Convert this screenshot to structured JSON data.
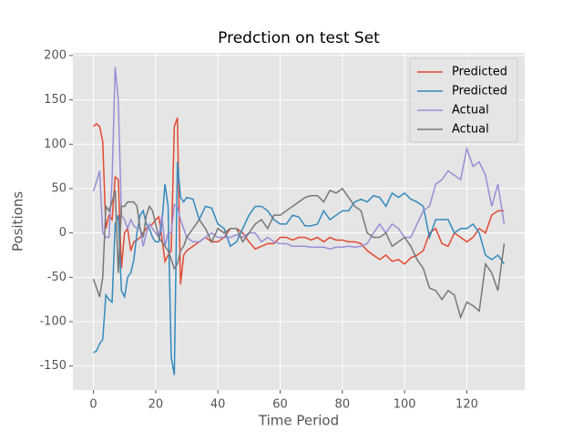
{
  "chart_data": {
    "type": "line",
    "title": "Predction on test Set",
    "x_label": "Time Period",
    "y_label": "Positions",
    "x": [
      0,
      1,
      2,
      3,
      4,
      5,
      6,
      7,
      8,
      9,
      10,
      11,
      12,
      13,
      14,
      15,
      16,
      17,
      18,
      19,
      20,
      21,
      22,
      23,
      24,
      25,
      26,
      27,
      28,
      29,
      30,
      32,
      34,
      36,
      38,
      40,
      42,
      44,
      46,
      48,
      50,
      52,
      54,
      56,
      58,
      60,
      62,
      64,
      66,
      68,
      70,
      72,
      74,
      76,
      78,
      80,
      82,
      84,
      86,
      88,
      90,
      92,
      94,
      96,
      98,
      100,
      102,
      104,
      106,
      108,
      110,
      112,
      114,
      116,
      118,
      120,
      122,
      124,
      126,
      128,
      130,
      132
    ],
    "series": [
      {
        "name": "Predicted",
        "color": "#E24A33",
        "values": [
          120,
          123,
          120,
          103,
          5,
          20,
          15,
          63,
          60,
          -40,
          0,
          5,
          -20,
          -10,
          -8,
          -5,
          0,
          5,
          8,
          10,
          15,
          18,
          -5,
          -32,
          -25,
          -20,
          120,
          130,
          -58,
          -25,
          -20,
          -15,
          -10,
          -5,
          -10,
          -10,
          -5,
          5,
          5,
          0,
          -10,
          -18,
          -15,
          -12,
          -12,
          -5,
          -5,
          -8,
          -5,
          -5,
          -8,
          -5,
          -10,
          -5,
          -8,
          -8,
          -10,
          -10,
          -12,
          -20,
          -25,
          -30,
          -25,
          -32,
          -30,
          -35,
          -28,
          -25,
          -20,
          0,
          5,
          -12,
          -15,
          0,
          -5,
          -10,
          -5,
          5,
          0,
          20,
          25,
          25
        ]
      },
      {
        "name": "Predicted",
        "color": "#348ABD",
        "values": [
          -135,
          -133,
          -125,
          -120,
          -70,
          -75,
          -78,
          10,
          20,
          -65,
          -72,
          -50,
          -45,
          -30,
          0,
          20,
          25,
          10,
          5,
          -5,
          -10,
          -10,
          10,
          55,
          30,
          -140,
          -160,
          80,
          40,
          35,
          40,
          38,
          15,
          30,
          28,
          10,
          5,
          -15,
          -10,
          5,
          20,
          30,
          30,
          25,
          15,
          10,
          10,
          20,
          18,
          8,
          8,
          10,
          25,
          15,
          20,
          25,
          25,
          35,
          38,
          35,
          42,
          40,
          30,
          45,
          40,
          45,
          38,
          35,
          30,
          -5,
          15,
          15,
          15,
          0,
          5,
          5,
          10,
          0,
          -25,
          -30,
          -25,
          -35
        ]
      },
      {
        "name": "Actual",
        "color": "#988ED5",
        "values": [
          47,
          58,
          70,
          0,
          -5,
          -5,
          60,
          187,
          150,
          20,
          15,
          5,
          15,
          8,
          5,
          5,
          -15,
          0,
          10,
          5,
          0,
          -5,
          20,
          -15,
          0,
          0,
          32,
          30,
          15,
          5,
          -5,
          -10,
          -10,
          -5,
          0,
          -5,
          -5,
          -5,
          -2,
          -5,
          0,
          0,
          -10,
          -5,
          -10,
          -12,
          -12,
          -15,
          -15,
          -15,
          -16,
          -16,
          -16,
          -18,
          -16,
          -16,
          -15,
          -16,
          -15,
          -12,
          0,
          10,
          0,
          10,
          5,
          -5,
          -5,
          10,
          25,
          30,
          55,
          60,
          70,
          65,
          60,
          95,
          75,
          80,
          65,
          30,
          55,
          10
        ]
      },
      {
        "name": "Actual",
        "color": "#777777",
        "values": [
          -52,
          -62,
          -72,
          -50,
          30,
          25,
          35,
          48,
          -45,
          30,
          30,
          35,
          35,
          35,
          30,
          5,
          -5,
          20,
          30,
          25,
          10,
          -5,
          -10,
          -15,
          -20,
          -30,
          -40,
          -35,
          -20,
          -15,
          -5,
          5,
          15,
          5,
          -10,
          5,
          0,
          5,
          5,
          -10,
          0,
          10,
          15,
          5,
          20,
          20,
          25,
          30,
          35,
          40,
          42,
          42,
          35,
          48,
          45,
          50,
          40,
          30,
          25,
          0,
          -5,
          -5,
          0,
          -15,
          -10,
          -5,
          -15,
          -30,
          -40,
          -62,
          -65,
          -75,
          -65,
          -70,
          -95,
          -78,
          -82,
          -88,
          -35,
          -45,
          -65,
          -12
        ]
      }
    ],
    "xlim": [
      -6.6,
      138.6
    ],
    "ylim": [
      -177,
      203
    ],
    "xticks": [
      0,
      20,
      40,
      60,
      80,
      100,
      120
    ],
    "yticks": [
      -150,
      -100,
      -50,
      0,
      50,
      100,
      150,
      200
    ],
    "grid": true,
    "legend": "upper right"
  }
}
